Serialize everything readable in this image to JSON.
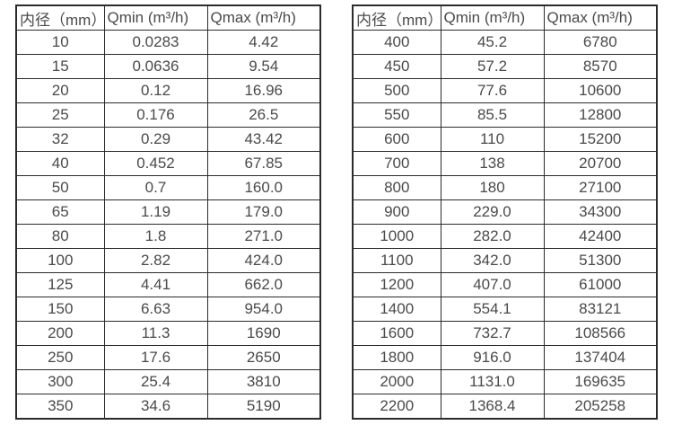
{
  "page": {
    "background": "#ffffff",
    "text_color": "#4a4a4a",
    "border_color": "#2b2b2b"
  },
  "tables": [
    {
      "name": "small-diameters",
      "headers": [
        "内径（mm）",
        "Qmin (m³/h)",
        "Qmax (m³/h)"
      ],
      "rows": [
        [
          "10",
          "0.0283",
          "4.42"
        ],
        [
          "15",
          "0.0636",
          "9.54"
        ],
        [
          "20",
          "0.12",
          "16.96"
        ],
        [
          "25",
          "0.176",
          "26.5"
        ],
        [
          "32",
          "0.29",
          "43.42"
        ],
        [
          "40",
          "0.452",
          "67.85"
        ],
        [
          "50",
          "0.7",
          "160.0"
        ],
        [
          "65",
          "1.19",
          "179.0"
        ],
        [
          "80",
          "1.8",
          "271.0"
        ],
        [
          "100",
          "2.82",
          "424.0"
        ],
        [
          "125",
          "4.41",
          "662.0"
        ],
        [
          "150",
          "6.63",
          "954.0"
        ],
        [
          "200",
          "11.3",
          "1690"
        ],
        [
          "250",
          "17.6",
          "2650"
        ],
        [
          "300",
          "25.4",
          "3810"
        ],
        [
          "350",
          "34.6",
          "5190"
        ]
      ]
    },
    {
      "name": "large-diameters",
      "headers": [
        "内径（mm）",
        "Qmin (m³/h)",
        "Qmax (m³/h)"
      ],
      "rows": [
        [
          "400",
          "45.2",
          "6780"
        ],
        [
          "450",
          "57.2",
          "8570"
        ],
        [
          "500",
          "77.6",
          "10600"
        ],
        [
          "550",
          "85.5",
          "12800"
        ],
        [
          "600",
          "110",
          "15200"
        ],
        [
          "700",
          "138",
          "20700"
        ],
        [
          "800",
          "180",
          "27100"
        ],
        [
          "900",
          "229.0",
          "34300"
        ],
        [
          "1000",
          "282.0",
          "42400"
        ],
        [
          "1100",
          "342.0",
          "51300"
        ],
        [
          "1200",
          "407.0",
          "61000"
        ],
        [
          "1400",
          "554.1",
          "83121"
        ],
        [
          "1600",
          "732.7",
          "108566"
        ],
        [
          "1800",
          "916.0",
          "137404"
        ],
        [
          "2000",
          "1131.0",
          "169635"
        ],
        [
          "2200",
          "1368.4",
          "205258"
        ]
      ]
    }
  ]
}
